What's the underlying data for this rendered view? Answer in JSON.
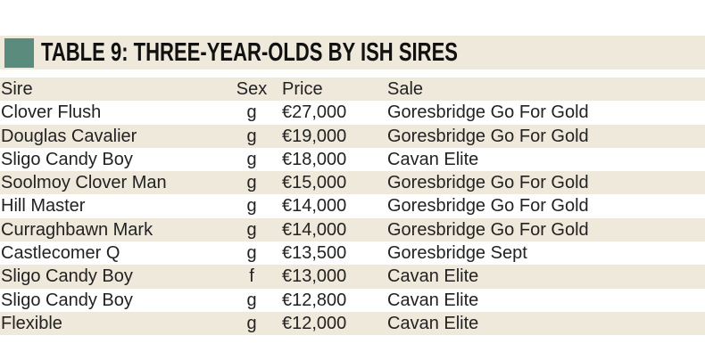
{
  "header": {
    "title": "TABLE 9: THREE-YEAR-OLDS BY ISH SIRES"
  },
  "table": {
    "columns": [
      "Sire",
      "Sex",
      "Price",
      "Sale"
    ],
    "rows": [
      [
        "Clover Flush",
        "g",
        "€27,000",
        "Goresbridge Go For Gold"
      ],
      [
        "Douglas Cavalier",
        "g",
        "€19,000",
        "Goresbridge Go For Gold"
      ],
      [
        "Sligo Candy Boy",
        "g",
        "€18,000",
        "Cavan Elite"
      ],
      [
        "Soolmoy Clover Man",
        "g",
        "€15,000",
        "Goresbridge Go For Gold"
      ],
      [
        "Hill Master",
        "g",
        "€14,000",
        "Goresbridge Go For Gold"
      ],
      [
        "Curraghbawn Mark",
        "g",
        "€14,000",
        "Goresbridge Go For Gold"
      ],
      [
        "Castlecomer Q",
        "g",
        "€13,500",
        "Goresbridge Sept"
      ],
      [
        "Sligo Candy Boy",
        "f",
        "€13,000",
        "Cavan Elite"
      ],
      [
        "Sligo Candy Boy",
        "g",
        "€12,800",
        "Cavan Elite"
      ],
      [
        "Flexible",
        "g",
        "€12,000",
        "Cavan Elite"
      ]
    ]
  }
}
